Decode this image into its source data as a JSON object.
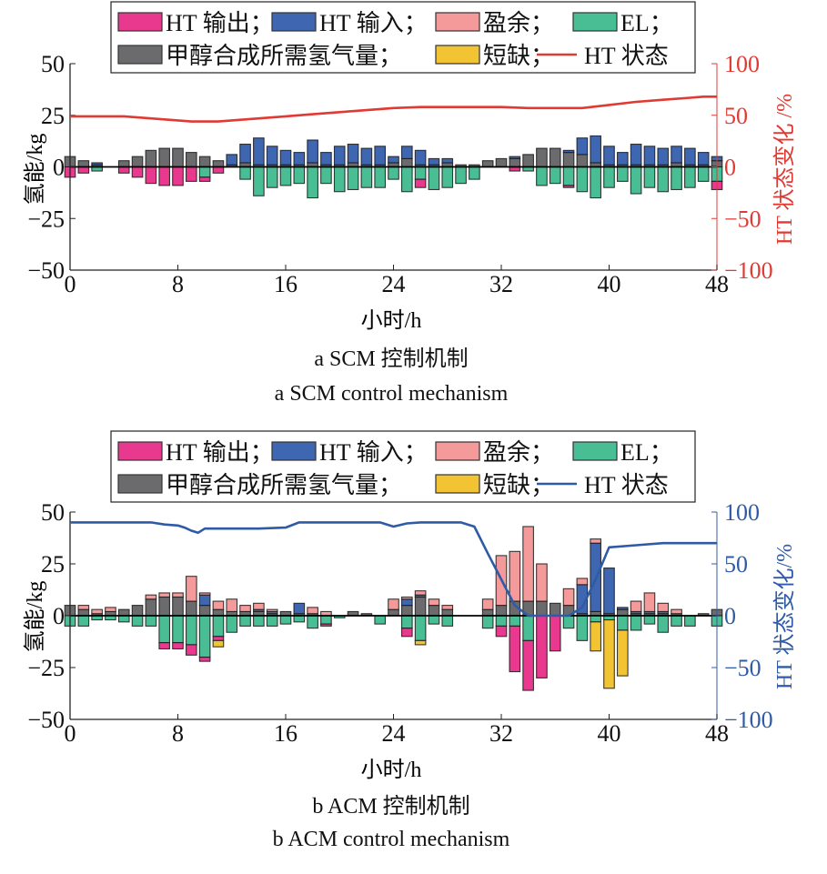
{
  "colors": {
    "ht_output": "#E8398F",
    "ht_input": "#3F66B0",
    "surplus": "#F49A9A",
    "el": "#49BE94",
    "methanol": "#6B6B6E",
    "shortage": "#F2C434",
    "state_a": "#E03A32",
    "state_b": "#2F5BA6"
  },
  "chart_data": [
    {
      "id": "a",
      "type": "bar",
      "stacked": true,
      "title": "",
      "caption_cn": "a  SCM 控制机制",
      "caption_en": "a  SCM control mechanism",
      "xlabel": "小时/h",
      "ylabel": "氢能/kg",
      "y2label": "HT 状态变化 /%",
      "xlim": [
        0,
        48
      ],
      "ylim": [
        -50,
        50
      ],
      "y2lim": [
        -100,
        100
      ],
      "xticks": [
        "0",
        "8",
        "16",
        "24",
        "32",
        "40",
        "48"
      ],
      "yticks": [
        "50",
        "25",
        "0",
        "−25",
        "−50"
      ],
      "y2ticks": [
        "100",
        "50",
        "0",
        "−50",
        "−100"
      ],
      "grid": false,
      "legend": {
        "placement": "top",
        "entries": [
          {
            "key": "ht_output",
            "label": "HT 输出；",
            "kind": "patch"
          },
          {
            "key": "ht_input",
            "label": "HT 输入；",
            "kind": "patch"
          },
          {
            "key": "surplus",
            "label": "盈余；",
            "kind": "patch"
          },
          {
            "key": "el",
            "label": "EL；",
            "kind": "patch"
          },
          {
            "key": "methanol",
            "label": "甲醇合成所需氢气量；",
            "kind": "patch"
          },
          {
            "key": "shortage",
            "label": "短缺；",
            "kind": "patch"
          },
          {
            "key": "state_a",
            "label": "HT 状态",
            "kind": "line"
          }
        ]
      },
      "hours": [
        0,
        1,
        2,
        3,
        4,
        5,
        6,
        7,
        8,
        9,
        10,
        11,
        12,
        13,
        14,
        15,
        16,
        17,
        18,
        19,
        20,
        21,
        22,
        23,
        24,
        25,
        26,
        27,
        28,
        29,
        30,
        31,
        32,
        33,
        34,
        35,
        36,
        37,
        38,
        39,
        40,
        41,
        42,
        43,
        44,
        45,
        46,
        47,
        48
      ],
      "series_positive": [
        {
          "name": "甲醇合成所需氢气量",
          "key": "methanol",
          "values": [
            5,
            3,
            1,
            0,
            3,
            5,
            8,
            9,
            9,
            7,
            5,
            3,
            1,
            2,
            1,
            1,
            1,
            1,
            2,
            1,
            1,
            2,
            1,
            1,
            2,
            4,
            1,
            1,
            2,
            1,
            1,
            3,
            4,
            4,
            6,
            9,
            9,
            7,
            6,
            2,
            1,
            1,
            1,
            1,
            1,
            2,
            1,
            1,
            3
          ]
        },
        {
          "name": "HT 输入",
          "key": "ht_input",
          "values": [
            0,
            0,
            1,
            0,
            0,
            0,
            0,
            0,
            0,
            0,
            0,
            0,
            5,
            9,
            13,
            9,
            7,
            6,
            11,
            6,
            9,
            9,
            8,
            9,
            3,
            6,
            7,
            3,
            2,
            0,
            0,
            0,
            0,
            1,
            0,
            0,
            0,
            1,
            8,
            13,
            9,
            6,
            10,
            9,
            8,
            8,
            8,
            6,
            2
          ]
        }
      ],
      "series_negative": [
        {
          "name": "EL",
          "key": "el",
          "values": [
            0,
            0,
            2,
            0,
            0,
            0,
            0,
            0,
            0,
            0,
            5,
            0,
            0,
            6,
            14,
            10,
            9,
            8,
            15,
            8,
            12,
            11,
            10,
            10,
            6,
            12,
            6,
            11,
            10,
            8,
            6,
            0,
            0,
            0,
            2,
            9,
            8,
            9,
            12,
            15,
            10,
            7,
            13,
            10,
            12,
            11,
            10,
            7,
            7
          ]
        },
        {
          "name": "HT 输出",
          "key": "ht_output",
          "values": [
            5,
            3,
            0,
            0,
            3,
            5,
            8,
            9,
            9,
            7,
            2,
            3,
            0,
            0,
            0,
            0,
            0,
            0,
            0,
            0,
            0,
            0,
            0,
            0,
            0,
            0,
            4,
            0,
            0,
            0,
            0,
            0,
            0,
            2,
            0,
            0,
            0,
            1,
            0,
            0,
            0,
            0,
            0,
            0,
            0,
            0,
            0,
            0,
            4
          ]
        }
      ],
      "line": {
        "name": "HT 状态",
        "key": "state_a",
        "axis": "right",
        "x": [
          0,
          2,
          4,
          6,
          8,
          9,
          10,
          11,
          12,
          14,
          16,
          18,
          20,
          22,
          24,
          26,
          28,
          30,
          32,
          34,
          36,
          38,
          40,
          42,
          44,
          46,
          47,
          48
        ],
        "values": [
          49,
          49,
          49,
          47,
          45,
          44,
          44,
          44,
          45,
          47,
          49,
          51,
          53,
          55,
          57,
          58,
          58,
          58,
          58,
          57,
          57,
          57,
          60,
          63,
          65,
          67,
          68,
          68
        ]
      }
    },
    {
      "id": "b",
      "type": "bar",
      "stacked": true,
      "title": "",
      "caption_cn": "b  ACM 控制机制",
      "caption_en": "b  ACM control mechanism",
      "xlabel": "小时/h",
      "ylabel": "氢能/kg",
      "y2label": "HT 状态变化/%",
      "xlim": [
        0,
        48
      ],
      "ylim": [
        -50,
        50
      ],
      "y2lim": [
        -100,
        100
      ],
      "xticks": [
        "0",
        "8",
        "16",
        "24",
        "32",
        "40",
        "48"
      ],
      "yticks": [
        "50",
        "25",
        "0",
        "−25",
        "−50"
      ],
      "y2ticks": [
        "100",
        "50",
        "0",
        "−50",
        "−100"
      ],
      "grid": false,
      "legend": {
        "placement": "top",
        "entries": [
          {
            "key": "ht_output",
            "label": "HT 输出；",
            "kind": "patch"
          },
          {
            "key": "ht_input",
            "label": "HT 输入；",
            "kind": "patch"
          },
          {
            "key": "surplus",
            "label": "盈余；",
            "kind": "patch"
          },
          {
            "key": "el",
            "label": "EL；",
            "kind": "patch"
          },
          {
            "key": "methanol",
            "label": "甲醇合成所需氢气量；",
            "kind": "patch"
          },
          {
            "key": "shortage",
            "label": "短缺；",
            "kind": "patch"
          },
          {
            "key": "state_b",
            "label": "HT 状态",
            "kind": "line"
          }
        ]
      },
      "hours": [
        0,
        1,
        2,
        3,
        4,
        5,
        6,
        7,
        8,
        9,
        10,
        11,
        12,
        13,
        14,
        15,
        16,
        17,
        18,
        19,
        20,
        21,
        22,
        23,
        24,
        25,
        26,
        27,
        28,
        29,
        30,
        31,
        32,
        33,
        34,
        35,
        36,
        37,
        38,
        39,
        40,
        41,
        42,
        43,
        44,
        45,
        46,
        47,
        48
      ],
      "series_positive": [
        {
          "name": "甲醇合成所需氢气量",
          "key": "methanol",
          "values": [
            5,
            3,
            1,
            2,
            3,
            5,
            8,
            9,
            9,
            7,
            5,
            3,
            2,
            2,
            2,
            1,
            2,
            1,
            1,
            0,
            0,
            2,
            1,
            0,
            3,
            5,
            9,
            5,
            3,
            0,
            0,
            3,
            5,
            7,
            7,
            7,
            6,
            5,
            1,
            2,
            1,
            3,
            1,
            1,
            1,
            1,
            0,
            1,
            3
          ]
        },
        {
          "name": "HT 输入",
          "key": "ht_input",
          "values": [
            0,
            0,
            0,
            0,
            0,
            0,
            0,
            0,
            0,
            0,
            5,
            0,
            0,
            0,
            1,
            1,
            0,
            5,
            0,
            0,
            0,
            0,
            0,
            0,
            0,
            3,
            1,
            0,
            0,
            0,
            0,
            0,
            0,
            0,
            0,
            0,
            0,
            0,
            14,
            33,
            22,
            1,
            1,
            1,
            1,
            0,
            0,
            0,
            0
          ]
        },
        {
          "name": "盈余",
          "key": "surplus",
          "values": [
            0,
            2,
            2,
            2,
            0,
            0,
            2,
            2,
            2,
            12,
            1,
            4,
            6,
            3,
            3,
            1,
            0,
            0,
            3,
            2,
            0,
            0,
            0,
            0,
            5,
            1,
            2,
            3,
            2,
            0,
            0,
            5,
            24,
            24,
            36,
            18,
            0,
            8,
            3,
            2,
            0,
            0,
            5,
            9,
            4,
            2,
            0,
            0,
            0
          ]
        }
      ],
      "series_negative": [
        {
          "name": "EL",
          "key": "el",
          "values": [
            5,
            5,
            2,
            2,
            3,
            5,
            5,
            13,
            13,
            14,
            20,
            10,
            8,
            5,
            5,
            5,
            4,
            3,
            6,
            4,
            1,
            0,
            0,
            4,
            0,
            6,
            12,
            4,
            5,
            0,
            0,
            6,
            5,
            5,
            12,
            0,
            0,
            6,
            12,
            3,
            2,
            7,
            7,
            4,
            8,
            5,
            5,
            0,
            5
          ]
        },
        {
          "name": "HT 输出",
          "key": "ht_output",
          "values": [
            0,
            0,
            0,
            0,
            0,
            0,
            0,
            3,
            3,
            5,
            2,
            2,
            0,
            0,
            0,
            0,
            0,
            0,
            0,
            1,
            0,
            0,
            0,
            0,
            0,
            4,
            0,
            0,
            0,
            0,
            0,
            0,
            5,
            22,
            24,
            30,
            17,
            0,
            0,
            0,
            0,
            0,
            0,
            0,
            0,
            0,
            0,
            0,
            0
          ]
        },
        {
          "name": "短缺",
          "key": "shortage",
          "values": [
            0,
            0,
            0,
            0,
            0,
            0,
            0,
            0,
            0,
            0,
            0,
            3,
            0,
            0,
            0,
            0,
            0,
            0,
            0,
            0,
            0,
            0,
            0,
            0,
            0,
            0,
            2,
            0,
            0,
            0,
            0,
            0,
            0,
            0,
            0,
            0,
            0,
            0,
            0,
            14,
            33,
            22,
            0,
            0,
            0,
            0,
            0,
            0,
            0
          ]
        }
      ],
      "line": {
        "name": "HT 状态",
        "key": "state_b",
        "axis": "right",
        "x": [
          0,
          2,
          4,
          5,
          6,
          7,
          8,
          8.5,
          9,
          9.5,
          10,
          11,
          12,
          14,
          16,
          17,
          18,
          20,
          22,
          23,
          24,
          25,
          26,
          28,
          29,
          30,
          31,
          32,
          33,
          34,
          35,
          36,
          37,
          38,
          39,
          40,
          42,
          44,
          46,
          48
        ],
        "values": [
          90,
          90,
          90,
          90,
          90,
          88,
          87,
          85,
          82,
          80,
          84,
          84,
          84,
          84,
          85,
          90,
          90,
          90,
          90,
          90,
          86,
          89,
          90,
          90,
          90,
          86,
          60,
          35,
          10,
          0,
          0,
          0,
          0,
          8,
          35,
          66,
          68,
          70,
          70,
          70
        ]
      }
    }
  ]
}
